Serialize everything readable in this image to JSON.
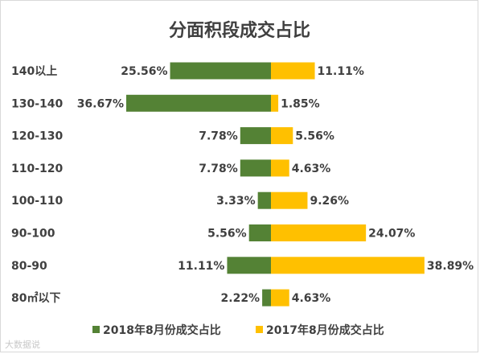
{
  "chart_data": {
    "type": "bar",
    "orientation": "horizontal-diverging",
    "title": "分面积段成交占比",
    "categories": [
      "140以上",
      "130-140",
      "120-130",
      "110-120",
      "100-110",
      "90-100",
      "80-90",
      "80㎡以下"
    ],
    "series": [
      {
        "name": "2018年8月份成交占比",
        "color": "#548235",
        "side": "left",
        "values": [
          25.56,
          36.67,
          7.78,
          7.78,
          3.33,
          5.56,
          11.11,
          2.22
        ],
        "labels": [
          "25.56%",
          "36.67%",
          "7.78%",
          "7.78%",
          "3.33%",
          "5.56%",
          "11.11%",
          "2.22%"
        ]
      },
      {
        "name": "2017年8月份成交占比",
        "color": "#ffc000",
        "side": "right",
        "values": [
          11.11,
          1.85,
          5.56,
          4.63,
          9.26,
          24.07,
          38.89,
          4.63
        ],
        "labels": [
          "11.11%",
          "1.85%",
          "5.56%",
          "4.63%",
          "9.26%",
          "24.07%",
          "38.89%",
          "4.63%"
        ]
      }
    ],
    "legend_position": "bottom",
    "grid": false
  },
  "watermark": "大数据说"
}
